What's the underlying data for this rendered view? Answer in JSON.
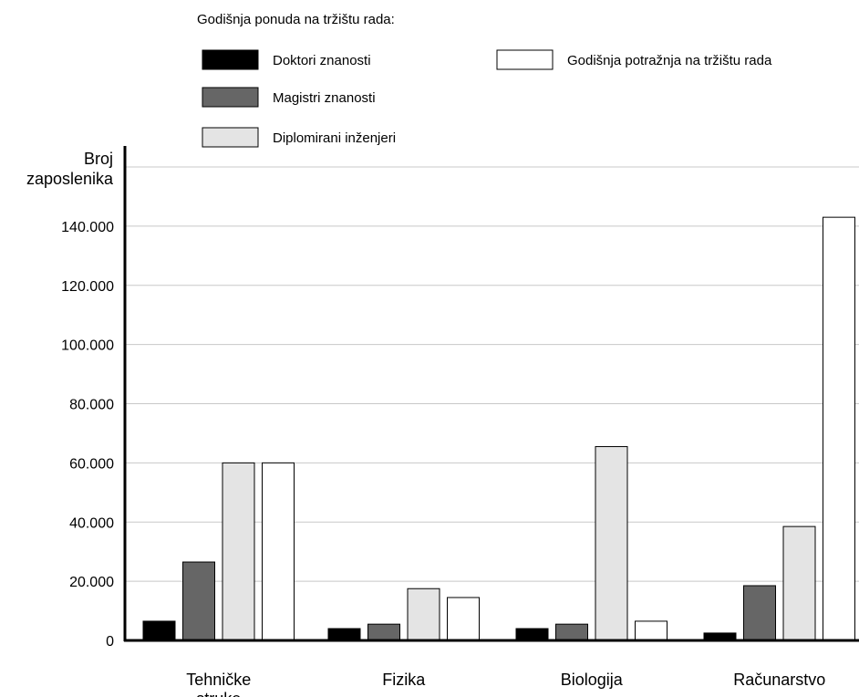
{
  "chart_data": {
    "type": "bar",
    "legend_title": "Godišnja ponuda na tržištu rada:",
    "ylabel_lines": [
      "Broj",
      "zaposlenika"
    ],
    "categories": [
      {
        "lines": [
          "Tehničke",
          "struke"
        ]
      },
      {
        "lines": [
          "Fizika"
        ]
      },
      {
        "lines": [
          "Biologija"
        ]
      },
      {
        "lines": [
          "Računarstvo"
        ]
      }
    ],
    "series": [
      {
        "name": "Doktori znanosti",
        "color": "#000000",
        "values": [
          6500,
          4000,
          4000,
          2500
        ]
      },
      {
        "name": "Magistri znanosti",
        "color": "#666666",
        "values": [
          26500,
          5500,
          5500,
          18500
        ]
      },
      {
        "name": "Diplomirani inženjeri",
        "color": "#e4e4e4",
        "values": [
          60000,
          17500,
          65500,
          38500
        ]
      },
      {
        "name": "Godišnja potražnja na tržištu rada",
        "color": "#ffffff",
        "values": [
          60000,
          14500,
          6500,
          143000
        ]
      }
    ],
    "yticks": [
      0,
      20000,
      40000,
      60000,
      80000,
      100000,
      120000,
      140000
    ],
    "ytick_labels": [
      "0",
      "20.000",
      "40.000",
      "60.000",
      "80.000",
      "100.000",
      "120.000",
      "140.000"
    ],
    "ylim": [
      0,
      160000
    ],
    "grid": true,
    "legend_position": "top"
  }
}
